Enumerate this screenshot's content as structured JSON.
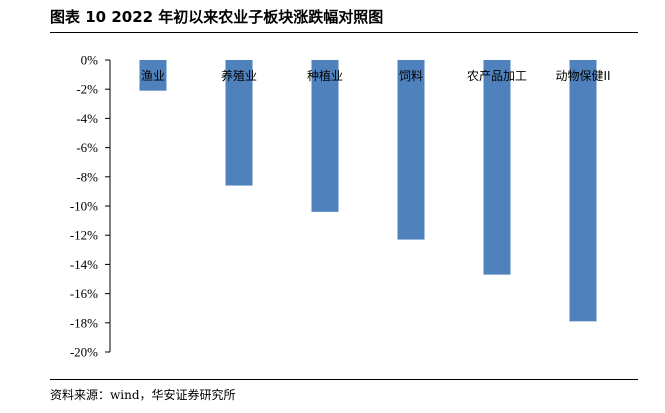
{
  "header": {
    "title": "图表 10 2022 年初以来农业子板块涨跌幅对照图"
  },
  "footer": {
    "source": "资料来源：wind，华安证券研究所"
  },
  "chart_data": {
    "type": "bar",
    "title": "",
    "xlabel": "",
    "ylabel": "",
    "categories": [
      "渔业",
      "养殖业",
      "种植业",
      "饲料",
      "农产品加工",
      "动物保健II"
    ],
    "values": [
      -2.1,
      -8.6,
      -10.4,
      -12.3,
      -14.7,
      -17.9
    ],
    "value_unit": "%",
    "ylim": [
      -20,
      0
    ],
    "yticks": [
      0,
      -2,
      -4,
      -6,
      -8,
      -10,
      -12,
      -14,
      -16,
      -18,
      -20
    ],
    "ytick_labels": [
      "0%",
      "-2%",
      "-4%",
      "-6%",
      "-8%",
      "-10%",
      "-12%",
      "-14%",
      "-16%",
      "-18%",
      "-20%"
    ],
    "grid": false,
    "bar_color": "#4f81bd"
  }
}
